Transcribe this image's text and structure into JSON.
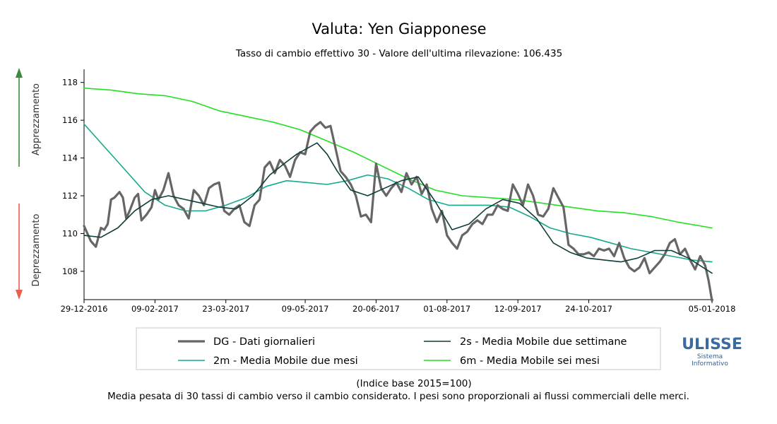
{
  "chart_data": {
    "type": "line",
    "title": "Valuta: Yen Giapponese",
    "subtitle": "Tasso di cambio effettivo 30 - Valore dell'ultima rilevazione: 106.435",
    "xlabel": "",
    "ylabel": "",
    "ylim": [
      106.5,
      118.7
    ],
    "yticks": [
      108,
      110,
      112,
      114,
      116,
      118
    ],
    "x_tick_labels": [
      "29-12-2016",
      "09-02-2017",
      "23-03-2017",
      "09-05-2017",
      "20-06-2017",
      "01-08-2017",
      "12-09-2017",
      "24-10-2017",
      "05-01-2018"
    ],
    "x_start": "29-12-2016",
    "x_end": "05-01-2018",
    "grid": false,
    "side_labels": {
      "up": "Apprezzamento",
      "down": "Deprezzamento"
    },
    "series": [
      {
        "name": "DG - Dati giornalieri",
        "color": "#666666",
        "x": [
          "2016-12-29",
          "2017-01-02",
          "2017-01-05",
          "2017-01-08",
          "2017-01-10",
          "2017-01-12",
          "2017-01-14",
          "2017-01-16",
          "2017-01-19",
          "2017-01-21",
          "2017-01-23",
          "2017-01-25",
          "2017-01-28",
          "2017-01-30",
          "2017-02-01",
          "2017-02-04",
          "2017-02-07",
          "2017-02-09",
          "2017-02-11",
          "2017-02-14",
          "2017-02-17",
          "2017-02-20",
          "2017-02-23",
          "2017-02-26",
          "2017-03-01",
          "2017-03-04",
          "2017-03-07",
          "2017-03-10",
          "2017-03-13",
          "2017-03-16",
          "2017-03-19",
          "2017-03-22",
          "2017-03-25",
          "2017-03-28",
          "2017-03-31",
          "2017-04-03",
          "2017-04-06",
          "2017-04-09",
          "2017-04-12",
          "2017-04-15",
          "2017-04-18",
          "2017-04-21",
          "2017-04-24",
          "2017-04-27",
          "2017-04-30",
          "2017-05-03",
          "2017-05-06",
          "2017-05-09",
          "2017-05-12",
          "2017-05-15",
          "2017-05-18",
          "2017-05-21",
          "2017-05-24",
          "2017-05-27",
          "2017-05-30",
          "2017-06-02",
          "2017-06-05",
          "2017-06-08",
          "2017-06-11",
          "2017-06-14",
          "2017-06-17",
          "2017-06-20",
          "2017-06-23",
          "2017-06-26",
          "2017-06-29",
          "2017-07-02",
          "2017-07-05",
          "2017-07-08",
          "2017-07-11",
          "2017-07-14",
          "2017-07-17",
          "2017-07-20",
          "2017-07-23",
          "2017-07-26",
          "2017-07-29",
          "2017-08-01",
          "2017-08-04",
          "2017-08-07",
          "2017-08-10",
          "2017-08-13",
          "2017-08-16",
          "2017-08-19",
          "2017-08-22",
          "2017-08-25",
          "2017-08-28",
          "2017-08-31",
          "2017-09-03",
          "2017-09-06",
          "2017-09-09",
          "2017-09-12",
          "2017-09-15",
          "2017-09-18",
          "2017-09-21",
          "2017-09-24",
          "2017-09-27",
          "2017-09-30",
          "2017-10-03",
          "2017-10-06",
          "2017-10-09",
          "2017-10-12",
          "2017-10-15",
          "2017-10-18",
          "2017-10-21",
          "2017-10-24",
          "2017-10-27",
          "2017-10-30",
          "2017-11-02",
          "2017-11-05",
          "2017-11-08",
          "2017-11-11",
          "2017-11-14",
          "2017-11-17",
          "2017-11-20",
          "2017-11-23",
          "2017-11-26",
          "2017-11-29",
          "2017-12-02",
          "2017-12-05",
          "2017-12-08",
          "2017-12-11",
          "2017-12-14",
          "2017-12-17",
          "2017-12-20",
          "2017-12-23",
          "2017-12-26",
          "2017-12-29",
          "2018-01-01",
          "2018-01-03",
          "2018-01-05"
        ],
        "values": [
          110.4,
          109.6,
          109.3,
          110.3,
          110.2,
          110.5,
          111.8,
          111.9,
          112.2,
          111.9,
          110.8,
          111.2,
          111.9,
          112.1,
          110.7,
          111.0,
          111.4,
          112.3,
          111.8,
          112.3,
          113.2,
          112.0,
          111.5,
          111.3,
          110.8,
          112.3,
          112.0,
          111.5,
          112.4,
          112.6,
          112.7,
          111.2,
          111.0,
          111.3,
          111.5,
          110.6,
          110.4,
          111.5,
          111.8,
          113.5,
          113.8,
          113.2,
          113.9,
          113.6,
          113.0,
          113.9,
          114.3,
          114.2,
          115.4,
          115.7,
          115.9,
          115.6,
          115.7,
          114.5,
          113.3,
          113.0,
          112.6,
          112.0,
          110.9,
          111.0,
          110.6,
          113.7,
          112.4,
          112.0,
          112.4,
          112.7,
          112.2,
          113.2,
          112.6,
          113.0,
          112.1,
          112.6,
          111.3,
          110.6,
          111.2,
          109.9,
          109.5,
          109.2,
          109.9,
          110.1,
          110.5,
          110.7,
          110.5,
          111.0,
          111.0,
          111.5,
          111.3,
          111.2,
          112.6,
          112.1,
          111.5,
          112.6,
          112.0,
          111.0,
          110.9,
          111.3,
          112.4,
          111.9,
          111.4,
          109.4,
          109.2,
          108.9,
          108.9,
          109.0,
          108.8,
          109.2,
          109.1,
          109.2,
          108.8,
          109.5,
          108.7,
          108.2,
          108.0,
          108.2,
          108.7,
          107.9,
          108.2,
          108.5,
          108.9,
          109.5,
          109.7,
          108.9,
          109.2,
          108.6,
          108.1,
          108.8,
          108.3,
          107.5,
          106.435
        ],
        "width": 3.2
      },
      {
        "name": "2s - Media Mobile due settimane",
        "color": "#0e3d3a",
        "x": [
          "2016-12-29",
          "2017-01-08",
          "2017-01-18",
          "2017-01-28",
          "2017-02-07",
          "2017-02-17",
          "2017-02-27",
          "2017-03-09",
          "2017-03-19",
          "2017-03-29",
          "2017-04-08",
          "2017-04-18",
          "2017-04-28",
          "2017-05-04",
          "2017-05-10",
          "2017-05-16",
          "2017-05-22",
          "2017-05-28",
          "2017-06-05",
          "2017-06-15",
          "2017-06-25",
          "2017-07-05",
          "2017-07-15",
          "2017-07-25",
          "2017-08-04",
          "2017-08-14",
          "2017-08-24",
          "2017-09-03",
          "2017-09-13",
          "2017-09-23",
          "2017-10-03",
          "2017-10-13",
          "2017-10-23",
          "2017-11-02",
          "2017-11-12",
          "2017-11-22",
          "2017-12-02",
          "2017-12-12",
          "2017-12-22",
          "2018-01-05"
        ],
        "values": [
          109.9,
          109.8,
          110.3,
          111.2,
          111.8,
          112.0,
          111.8,
          111.6,
          111.4,
          111.3,
          112.0,
          113.1,
          113.8,
          114.2,
          114.5,
          114.8,
          114.2,
          113.3,
          112.3,
          112.0,
          112.4,
          112.8,
          113.0,
          111.7,
          110.2,
          110.5,
          111.3,
          111.8,
          111.6,
          110.8,
          109.5,
          109.0,
          108.7,
          108.6,
          108.5,
          108.7,
          109.1,
          109.1,
          108.7,
          107.9
        ],
        "width": 1.6
      },
      {
        "name": "2m - Media Mobile due mesi",
        "color": "#16a98e",
        "x": [
          "2016-12-29",
          "2017-01-10",
          "2017-01-22",
          "2017-02-03",
          "2017-02-15",
          "2017-02-27",
          "2017-03-11",
          "2017-03-23",
          "2017-04-04",
          "2017-04-16",
          "2017-04-28",
          "2017-05-10",
          "2017-05-22",
          "2017-06-03",
          "2017-06-15",
          "2017-06-27",
          "2017-07-09",
          "2017-07-21",
          "2017-08-02",
          "2017-08-14",
          "2017-08-26",
          "2017-09-07",
          "2017-09-19",
          "2017-10-01",
          "2017-10-13",
          "2017-10-25",
          "2017-11-06",
          "2017-11-18",
          "2017-11-30",
          "2017-12-12",
          "2017-12-24",
          "2018-01-05"
        ],
        "values": [
          115.8,
          114.6,
          113.4,
          112.2,
          111.5,
          111.2,
          111.2,
          111.5,
          111.9,
          112.5,
          112.8,
          112.7,
          112.6,
          112.8,
          113.1,
          112.9,
          112.4,
          111.8,
          111.5,
          111.5,
          111.5,
          111.4,
          110.9,
          110.3,
          110.0,
          109.8,
          109.5,
          109.2,
          109.0,
          108.8,
          108.6,
          108.5
        ],
        "width": 1.6
      },
      {
        "name": "6m - Media Mobile sei mesi",
        "color": "#22e022",
        "x": [
          "2016-12-29",
          "2017-01-14",
          "2017-01-30",
          "2017-02-15",
          "2017-03-03",
          "2017-03-19",
          "2017-04-04",
          "2017-04-20",
          "2017-05-06",
          "2017-05-22",
          "2017-06-07",
          "2017-06-23",
          "2017-07-09",
          "2017-07-25",
          "2017-08-10",
          "2017-08-26",
          "2017-09-11",
          "2017-09-27",
          "2017-10-13",
          "2017-10-29",
          "2017-11-14",
          "2017-11-30",
          "2017-12-16",
          "2018-01-05"
        ],
        "values": [
          117.7,
          117.6,
          117.4,
          117.3,
          117.0,
          116.5,
          116.2,
          115.9,
          115.5,
          114.9,
          114.3,
          113.6,
          112.9,
          112.3,
          112.0,
          111.9,
          111.8,
          111.6,
          111.4,
          111.2,
          111.1,
          110.9,
          110.6,
          110.3
        ],
        "width": 1.6
      }
    ]
  },
  "legend": {
    "items": [
      {
        "label": "DG - Dati giornalieri",
        "color": "#666666"
      },
      {
        "label": "2s - Media Mobile due settimane",
        "color": "#0e3d3a"
      },
      {
        "label": "2m - Media Mobile due mesi",
        "color": "#16a98e"
      },
      {
        "label": "6m - Media Mobile sei mesi",
        "color": "#22e022"
      }
    ]
  },
  "footer": {
    "note1": "(Indice base 2015=100)",
    "note2": "Media pesata di 30 tassi di cambio verso il cambio considerato. I pesi sono proporzionali ai flussi commerciali delle merci."
  },
  "logo": {
    "name": "ULISSE",
    "line1": "Sistema",
    "line2": "Informativo"
  },
  "colors": {
    "arrow_up": "#3a8a3a",
    "arrow_down": "#e8604c"
  }
}
